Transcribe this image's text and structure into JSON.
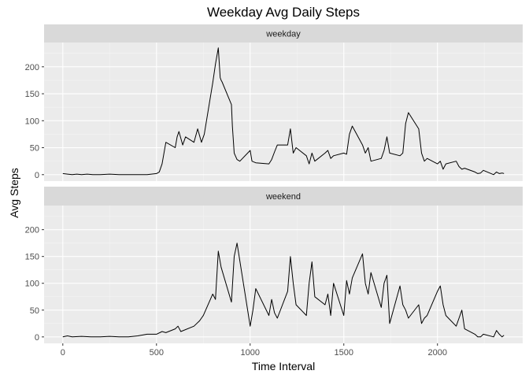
{
  "chart_data": {
    "type": "line",
    "title": "Weekday Avg Daily Steps",
    "xlabel": "Time Interval",
    "ylabel": "Avg Steps",
    "xlim": [
      -100,
      2455
    ],
    "ylim": [
      -12,
      245
    ],
    "x_ticks": [
      0,
      500,
      1000,
      1500,
      2000
    ],
    "y_ticks": [
      0,
      50,
      100,
      150,
      200
    ],
    "grid": true,
    "colors": {
      "panel": "#ebebeb",
      "strip": "#d9d9d9",
      "line": "#000000"
    },
    "panels": [
      {
        "strip_label": "weekday",
        "x": [
          0,
          25,
          50,
          75,
          100,
          130,
          160,
          200,
          250,
          300,
          350,
          400,
          450,
          500,
          515,
          530,
          550,
          600,
          610,
          620,
          640,
          655,
          700,
          720,
          740,
          755,
          800,
          815,
          830,
          840,
          845,
          850,
          900,
          905,
          915,
          930,
          945,
          1000,
          1010,
          1030,
          1100,
          1115,
          1130,
          1145,
          1200,
          1215,
          1230,
          1245,
          1300,
          1315,
          1330,
          1345,
          1400,
          1415,
          1430,
          1445,
          1500,
          1515,
          1530,
          1545,
          1600,
          1615,
          1630,
          1645,
          1700,
          1715,
          1730,
          1745,
          1800,
          1815,
          1830,
          1845,
          1900,
          1915,
          1930,
          1945,
          2000,
          2015,
          2030,
          2045,
          2100,
          2115,
          2130,
          2145,
          2200,
          2215,
          2230,
          2245,
          2300,
          2315,
          2330,
          2345,
          2355
        ],
        "values": [
          2,
          1,
          0,
          1,
          0,
          1,
          0,
          0,
          1,
          0,
          0,
          0,
          0,
          2,
          5,
          20,
          60,
          50,
          70,
          80,
          55,
          70,
          60,
          85,
          60,
          75,
          170,
          205,
          235,
          180,
          175,
          172,
          130,
          90,
          40,
          28,
          25,
          45,
          25,
          22,
          20,
          28,
          42,
          55,
          55,
          85,
          40,
          50,
          35,
          20,
          40,
          25,
          40,
          45,
          30,
          35,
          40,
          38,
          75,
          90,
          55,
          40,
          50,
          25,
          30,
          45,
          70,
          40,
          35,
          40,
          95,
          115,
          85,
          40,
          25,
          30,
          20,
          25,
          10,
          20,
          25,
          15,
          10,
          12,
          5,
          2,
          3,
          8,
          0,
          5,
          2,
          3,
          2
        ]
      },
      {
        "strip_label": "weekend",
        "x": [
          0,
          25,
          50,
          100,
          150,
          200,
          250,
          300,
          350,
          400,
          450,
          500,
          530,
          550,
          600,
          615,
          630,
          700,
          730,
          750,
          800,
          815,
          830,
          845,
          900,
          915,
          930,
          1000,
          1015,
          1030,
          1100,
          1115,
          1130,
          1145,
          1200,
          1215,
          1230,
          1245,
          1300,
          1315,
          1330,
          1345,
          1400,
          1415,
          1430,
          1445,
          1500,
          1515,
          1530,
          1545,
          1600,
          1615,
          1630,
          1645,
          1700,
          1715,
          1730,
          1745,
          1800,
          1815,
          1830,
          1845,
          1900,
          1915,
          1930,
          1945,
          2000,
          2015,
          2030,
          2045,
          2100,
          2115,
          2130,
          2145,
          2200,
          2215,
          2230,
          2245,
          2300,
          2315,
          2330,
          2345,
          2355
        ],
        "values": [
          0,
          2,
          0,
          1,
          0,
          0,
          1,
          0,
          0,
          2,
          5,
          5,
          10,
          8,
          15,
          20,
          10,
          20,
          30,
          40,
          80,
          70,
          160,
          130,
          65,
          150,
          175,
          20,
          50,
          90,
          40,
          70,
          45,
          35,
          85,
          150,
          100,
          60,
          40,
          100,
          140,
          75,
          60,
          80,
          40,
          100,
          40,
          105,
          80,
          110,
          155,
          100,
          80,
          120,
          55,
          100,
          115,
          25,
          95,
          60,
          50,
          35,
          60,
          25,
          35,
          40,
          85,
          95,
          60,
          40,
          20,
          35,
          50,
          15,
          5,
          0,
          0,
          5,
          0,
          12,
          5,
          0,
          3
        ]
      }
    ]
  }
}
